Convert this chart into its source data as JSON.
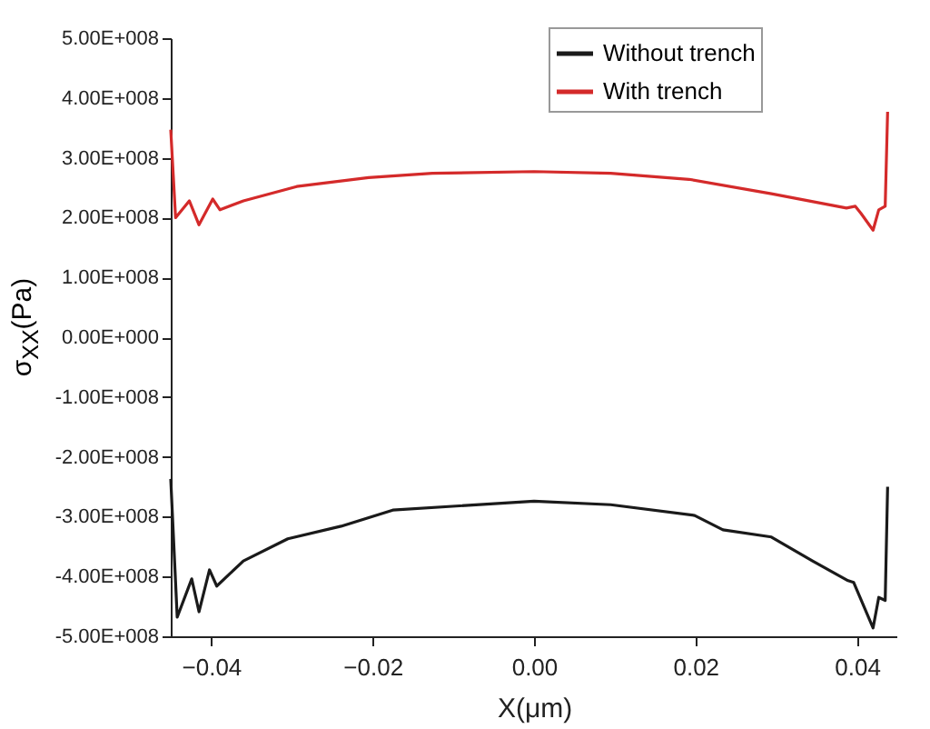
{
  "chart_data": {
    "type": "line",
    "xlabel": "X(μm)",
    "ylabel": "σ$_{XX}$(Pa)",
    "xlim": [
      -0.045,
      0.045
    ],
    "ylim": [
      -500000000,
      500000000
    ],
    "xticks": [
      -0.04,
      -0.02,
      {
        "value": 0,
        "label": "0.00"
      },
      0.02,
      0.04
    ],
    "yticks": [
      {
        "value": -500000000,
        "label": "-5.00E+008"
      },
      {
        "value": -400000000,
        "label": "-4.00E+008"
      },
      {
        "value": -300000000,
        "label": "-3.00E+008"
      },
      {
        "value": -200000000,
        "label": "-2.00E+008"
      },
      {
        "value": -100000000,
        "label": "-1.00E+008"
      },
      {
        "value": 0,
        "label": "0.00E+000"
      },
      {
        "value": 100000000,
        "label": "1.00E+008"
      },
      {
        "value": 200000000,
        "label": "2.00E+008"
      },
      {
        "value": 300000000,
        "label": "3.00E+008"
      },
      {
        "value": 400000000,
        "label": "4.00E+008"
      },
      {
        "value": 500000000,
        "label": "5.00E+008"
      }
    ],
    "grid": false,
    "legend": "top right",
    "marker": "none",
    "line_style": "solid",
    "series": [
      {
        "name": "Without trench",
        "color": "#1a1a1a",
        "x": [
          -0.045,
          -0.0442,
          -0.0424,
          -0.0415,
          -0.0402,
          -0.0393,
          -0.036,
          -0.0305,
          -0.0239,
          -0.0175,
          0,
          0.0095,
          0.0199,
          0.0234,
          0.0294,
          0.0345,
          0.0389,
          0.0396,
          0.042,
          0.0427,
          0.0435,
          0.0438
        ],
        "values": [
          -237000000,
          -468000000,
          -404000000,
          -459000000,
          -389000000,
          -416000000,
          -374000000,
          -337000000,
          -316000000,
          -289000000,
          -274000000,
          -280000000,
          -298000000,
          -322000000,
          -334000000,
          -374000000,
          -407000000,
          -410000000,
          -486000000,
          -435000000,
          -440000000,
          -250000000
        ]
      },
      {
        "name": "With trench",
        "color": "#d42a2a",
        "x": [
          -0.045,
          -0.0444,
          -0.0427,
          -0.0415,
          -0.0398,
          -0.0389,
          -0.036,
          -0.0294,
          -0.0205,
          -0.0126,
          0,
          0.0095,
          0.0192,
          0.0294,
          0.0387,
          0.0398,
          0.0405,
          0.042,
          0.0427,
          0.0435,
          0.0438
        ],
        "values": [
          347000000,
          200000000,
          228000000,
          188000000,
          231000000,
          213000000,
          228000000,
          252000000,
          267000000,
          274000000,
          277000000,
          274000000,
          264000000,
          240000000,
          216000000,
          219000000,
          207000000,
          179000000,
          213000000,
          219000000,
          377000000
        ]
      }
    ]
  }
}
